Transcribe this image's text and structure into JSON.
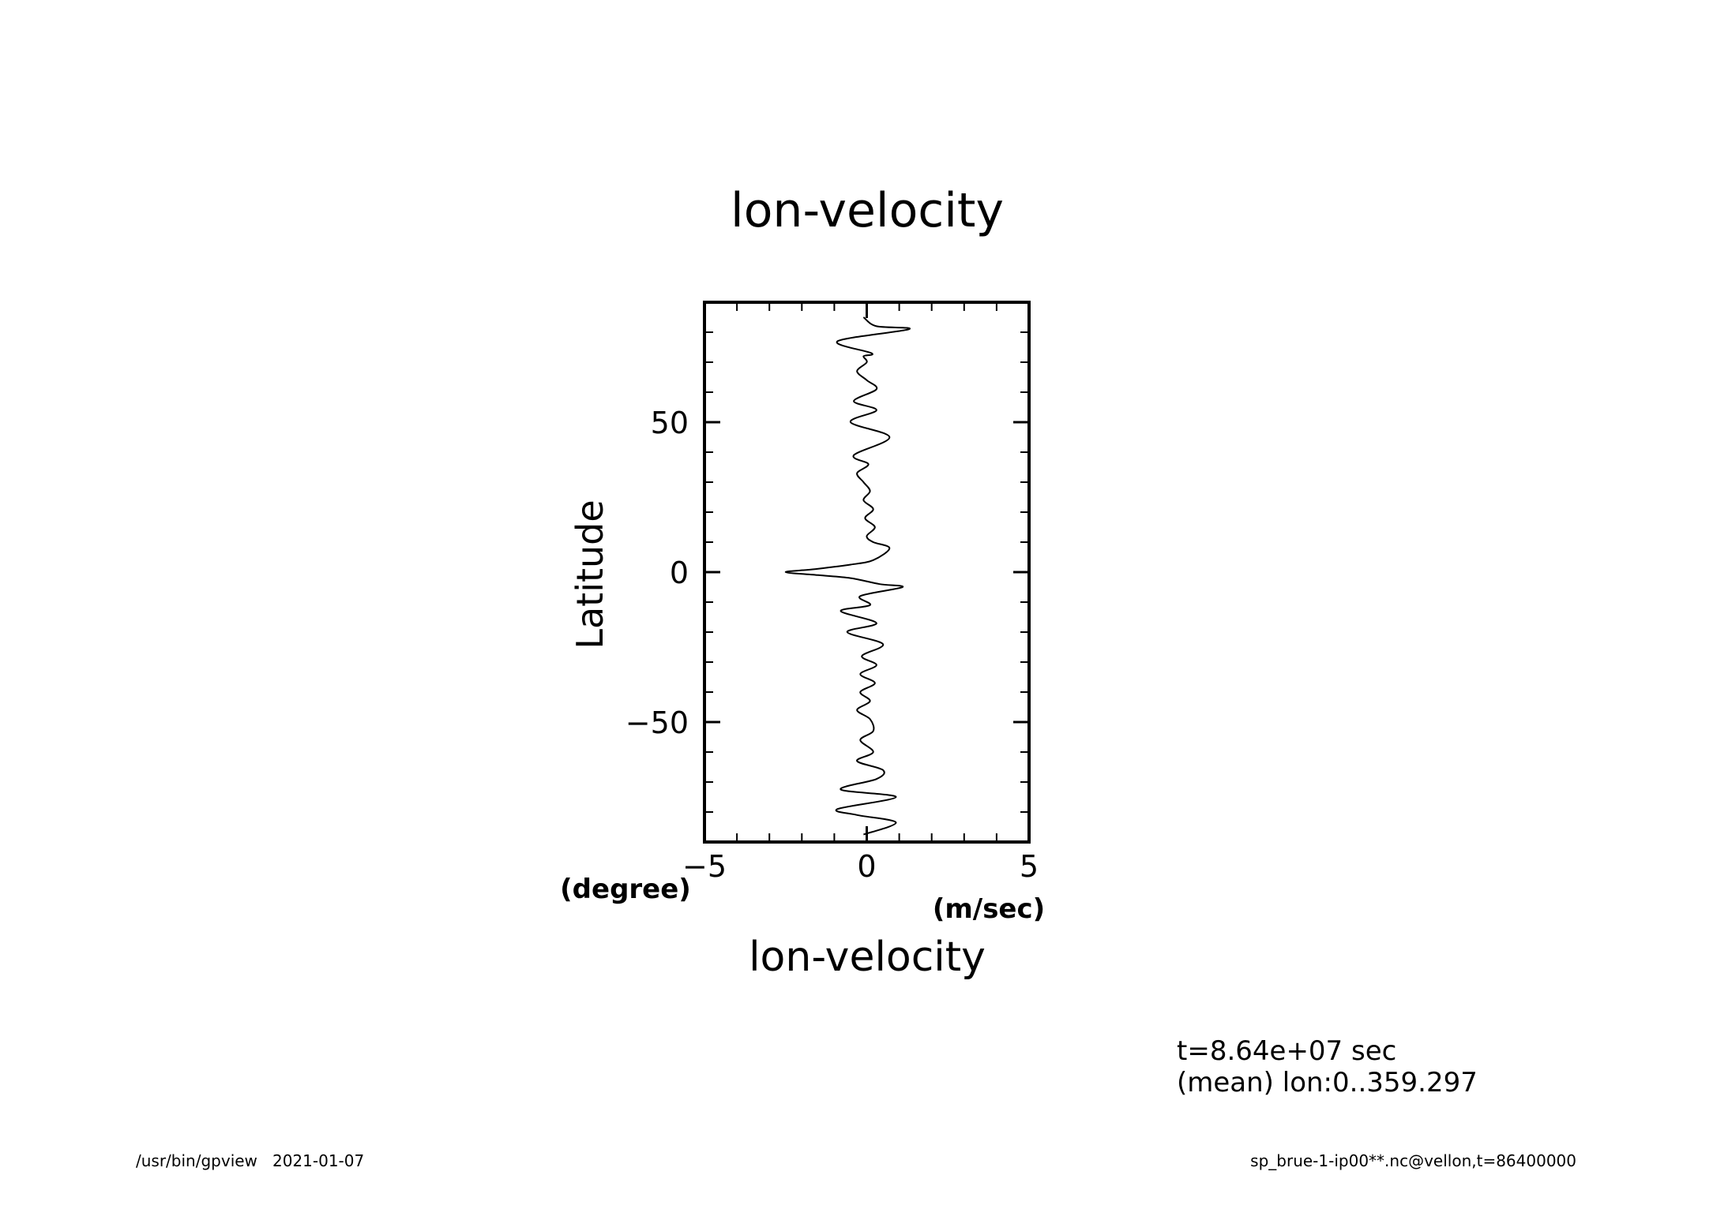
{
  "chart_data": {
    "type": "line",
    "title": "lon-velocity",
    "xlabel": "lon-velocity",
    "xunit": "(m/sec)",
    "ylabel": "Latitude",
    "yunit": "(degree)",
    "xlim": [
      -5,
      5
    ],
    "ylim": [
      -90,
      90
    ],
    "x_ticks": [
      -5,
      0,
      5
    ],
    "y_ticks": [
      -50,
      0,
      50
    ],
    "grid": false,
    "legend": "none",
    "line_color": "#000000",
    "series": [
      {
        "points": [
          [
            -0.1,
            -87.5
          ],
          [
            0.9,
            -83.5
          ],
          [
            -0.3,
            -81
          ],
          [
            -0.9,
            -79
          ],
          [
            0.9,
            -75
          ],
          [
            -0.8,
            -72.5
          ],
          [
            0.3,
            -69
          ],
          [
            0.5,
            -66
          ],
          [
            -0.3,
            -63
          ],
          [
            0.2,
            -60
          ],
          [
            -0.2,
            -56
          ],
          [
            0.2,
            -53
          ],
          [
            0.1,
            -49
          ],
          [
            -0.3,
            -46
          ],
          [
            0.1,
            -43
          ],
          [
            -0.2,
            -40
          ],
          [
            0.25,
            -37
          ],
          [
            -0.2,
            -34
          ],
          [
            0.3,
            -31
          ],
          [
            -0.15,
            -28
          ],
          [
            0.5,
            -24
          ],
          [
            -0.6,
            -20
          ],
          [
            0.3,
            -17
          ],
          [
            -0.8,
            -13
          ],
          [
            0.1,
            -11
          ],
          [
            -0.2,
            -8
          ],
          [
            1.1,
            -5
          ],
          [
            0.4,
            -4
          ],
          [
            -0.5,
            -2
          ],
          [
            -1.5,
            -1
          ],
          [
            -2.5,
            0
          ],
          [
            -1.6,
            1
          ],
          [
            -0.5,
            2.5
          ],
          [
            0.2,
            4
          ],
          [
            0.7,
            8
          ],
          [
            0.2,
            10
          ],
          [
            0.0,
            12
          ],
          [
            0.25,
            15
          ],
          [
            -0.05,
            18
          ],
          [
            0.2,
            21
          ],
          [
            -0.1,
            24
          ],
          [
            0.1,
            27
          ],
          [
            -0.1,
            30
          ],
          [
            -0.3,
            33
          ],
          [
            0.05,
            36
          ],
          [
            -0.4,
            39
          ],
          [
            0.7,
            45
          ],
          [
            -0.5,
            50
          ],
          [
            0.3,
            54
          ],
          [
            -0.4,
            57
          ],
          [
            0.3,
            61
          ],
          [
            0.0,
            64
          ],
          [
            -0.3,
            67
          ],
          [
            0.0,
            70
          ],
          [
            -0.1,
            72
          ],
          [
            0.15,
            73
          ],
          [
            -0.9,
            77
          ],
          [
            1.3,
            81
          ],
          [
            0.3,
            82
          ],
          [
            -0.1,
            85
          ]
        ]
      }
    ]
  },
  "annotations": {
    "time_text": "t=8.64e+07 sec",
    "mean_text": "(mean) lon:0..359.297"
  },
  "footer": {
    "left": "/usr/bin/gpview   2021-01-07",
    "right": "sp_brue-1-ip00**.nc@vellon,t=86400000"
  }
}
